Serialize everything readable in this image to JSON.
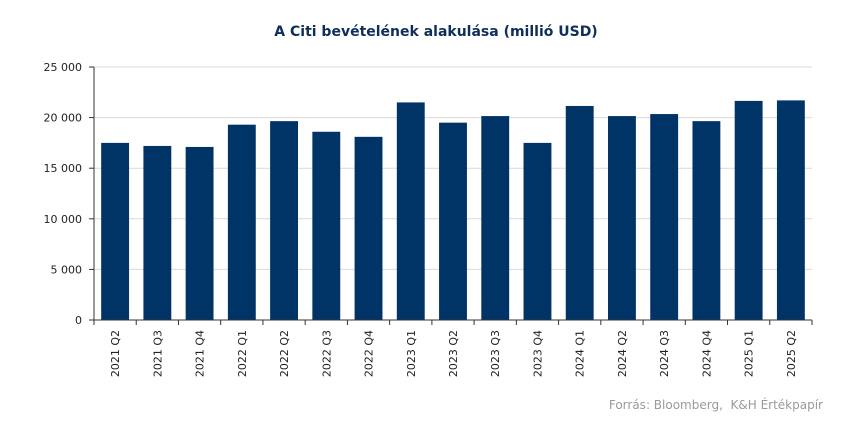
{
  "chart_data": {
    "type": "bar",
    "title": "A Citi bevételének alakulása (millió USD)",
    "categories": [
      "2021 Q2",
      "2021 Q3",
      "2021 Q4",
      "2022 Q1",
      "2022 Q2",
      "2022 Q3",
      "2022 Q4",
      "2023 Q1",
      "2023 Q2",
      "2023 Q3",
      "2023 Q4",
      "2024 Q1",
      "2024 Q2",
      "2024 Q3",
      "2024 Q4",
      "2025 Q1",
      "2025 Q2"
    ],
    "values": [
      17500,
      17200,
      17100,
      19300,
      19650,
      18600,
      18100,
      21500,
      19500,
      20150,
      17500,
      21150,
      20150,
      20350,
      19650,
      21650,
      21700
    ],
    "ylim": [
      0,
      25000
    ],
    "yticks": [
      0,
      5000,
      10000,
      15000,
      20000,
      25000
    ],
    "ytick_labels": [
      "0",
      "5 000",
      "10 000",
      "15 000",
      "20 000",
      "25 000"
    ],
    "xlabel": "",
    "ylabel": "",
    "grid": true,
    "bar_color": "#003366",
    "source": "Forrás: Bloomberg,  K&H Értékpapír"
  }
}
